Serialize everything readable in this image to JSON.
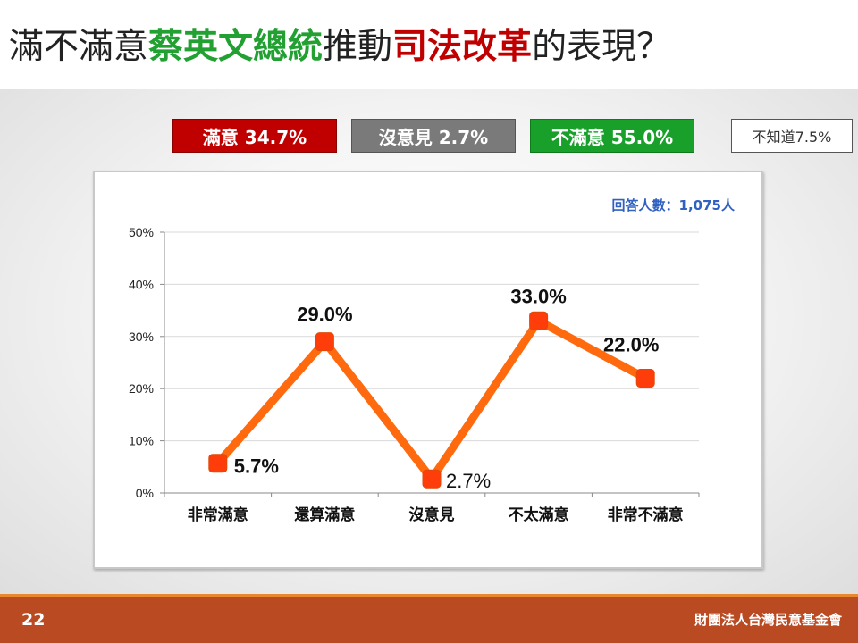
{
  "title": {
    "part1": "滿不滿意",
    "part2": "蔡英文總統",
    "part3": "推動",
    "part4": "司法改革",
    "part5": "的表現？"
  },
  "summary": {
    "satisfied": "滿意 34.7%",
    "no_opinion": "沒意見 2.7%",
    "dissatisfied": "不滿意 55.0%",
    "dont_know": "不知道7.5%"
  },
  "colors": {
    "satisfied": "#c00000",
    "no_opinion": "#7a7a7a",
    "dissatisfied": "#18a02a",
    "line": "#ff6a0e",
    "marker": "#ff3d0a",
    "sample": "#3060c0",
    "footer": "#b94a22"
  },
  "chart_data": {
    "type": "line",
    "categories": [
      "非常滿意",
      "還算滿意",
      "沒意見",
      "不太滿意",
      "非常不滿意"
    ],
    "series": [
      {
        "values": [
          5.7,
          29.0,
          2.7,
          33.0,
          22.0
        ]
      }
    ],
    "data_labels": [
      "5.7%",
      "29.0%",
      "2.7%",
      "33.0%",
      "22.0%"
    ],
    "yticks": [
      "0%",
      "10%",
      "20%",
      "30%",
      "40%",
      "50%"
    ],
    "ylim": [
      0,
      50
    ],
    "grid": true,
    "annotation": "回答人數：1,075人"
  },
  "footer": {
    "page": "22",
    "org": "財團法人台灣民意基金會"
  }
}
